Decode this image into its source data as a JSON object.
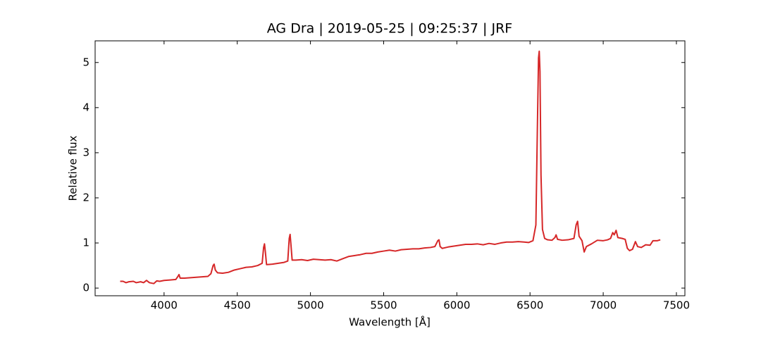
{
  "chart_data": {
    "type": "line",
    "title": "AG Dra | 2019-05-25 | 09:25:37 | JRF",
    "xlabel": "Wavelength [Å]",
    "ylabel": "Relative flux",
    "xlim": [
      3529,
      7558
    ],
    "ylim": [
      -0.17,
      5.48
    ],
    "xticks": [
      4000,
      4500,
      5000,
      5500,
      6000,
      6500,
      7000,
      7500
    ],
    "yticks": [
      0,
      1,
      2,
      3,
      4,
      5
    ],
    "grid": false,
    "series": [
      {
        "color": "#d62728",
        "x": [
          3700,
          3720,
          3740,
          3760,
          3790,
          3810,
          3840,
          3860,
          3880,
          3900,
          3930,
          3950,
          3970,
          4000,
          4040,
          4080,
          4095,
          4102,
          4110,
          4140,
          4180,
          4220,
          4260,
          4300,
          4320,
          4335,
          4342,
          4350,
          4365,
          4400,
          4440,
          4480,
          4520,
          4560,
          4600,
          4640,
          4670,
          4680,
          4686,
          4692,
          4700,
          4740,
          4780,
          4820,
          4845,
          4855,
          4861,
          4867,
          4875,
          4900,
          4940,
          4980,
          5020,
          5060,
          5100,
          5140,
          5180,
          5220,
          5260,
          5300,
          5340,
          5380,
          5420,
          5460,
          5500,
          5540,
          5580,
          5620,
          5660,
          5700,
          5740,
          5780,
          5820,
          5850,
          5870,
          5878,
          5886,
          5900,
          5940,
          5980,
          6020,
          6060,
          6100,
          6140,
          6180,
          6220,
          6260,
          6300,
          6340,
          6380,
          6420,
          6460,
          6490,
          6520,
          6540,
          6550,
          6558,
          6563,
          6568,
          6575,
          6585,
          6600,
          6620,
          6650,
          6670,
          6678,
          6688,
          6720,
          6760,
          6800,
          6815,
          6825,
          6835,
          6855,
          6870,
          6885,
          6920,
          6960,
          7000,
          7030,
          7050,
          7065,
          7075,
          7088,
          7100,
          7130,
          7150,
          7165,
          7180,
          7200,
          7220,
          7235,
          7260,
          7290,
          7320,
          7340,
          7370,
          7390
        ],
        "values": [
          0.15,
          0.15,
          0.12,
          0.14,
          0.15,
          0.12,
          0.14,
          0.12,
          0.17,
          0.12,
          0.1,
          0.16,
          0.15,
          0.17,
          0.18,
          0.19,
          0.26,
          0.3,
          0.22,
          0.22,
          0.23,
          0.24,
          0.25,
          0.26,
          0.32,
          0.5,
          0.53,
          0.4,
          0.34,
          0.33,
          0.35,
          0.4,
          0.43,
          0.46,
          0.47,
          0.5,
          0.55,
          0.9,
          0.98,
          0.8,
          0.52,
          0.53,
          0.55,
          0.57,
          0.6,
          1.1,
          1.19,
          0.95,
          0.62,
          0.62,
          0.63,
          0.61,
          0.64,
          0.63,
          0.62,
          0.63,
          0.6,
          0.65,
          0.7,
          0.72,
          0.74,
          0.77,
          0.77,
          0.8,
          0.82,
          0.84,
          0.82,
          0.85,
          0.86,
          0.87,
          0.87,
          0.89,
          0.9,
          0.92,
          1.05,
          1.07,
          0.92,
          0.88,
          0.91,
          0.93,
          0.95,
          0.97,
          0.97,
          0.98,
          0.96,
          0.99,
          0.97,
          1.0,
          1.02,
          1.02,
          1.03,
          1.02,
          1.01,
          1.05,
          1.4,
          3.5,
          5.1,
          5.25,
          4.8,
          2.5,
          1.3,
          1.1,
          1.07,
          1.06,
          1.12,
          1.18,
          1.08,
          1.06,
          1.07,
          1.1,
          1.4,
          1.48,
          1.15,
          1.05,
          0.8,
          0.92,
          0.98,
          1.06,
          1.05,
          1.07,
          1.1,
          1.23,
          1.18,
          1.28,
          1.12,
          1.1,
          1.08,
          0.88,
          0.83,
          0.86,
          1.03,
          0.92,
          0.9,
          0.96,
          0.95,
          1.05,
          1.05,
          1.07
        ]
      }
    ]
  }
}
